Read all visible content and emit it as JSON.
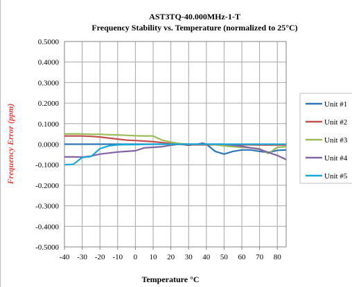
{
  "chart_data": {
    "type": "line",
    "title": "AST3TQ-40.000MHz-1-T",
    "subtitle": "Frequency Stability vs. Temperature  (normalized to 25°C)",
    "xlabel": "Temperature °C",
    "ylabel": "Frequency Error (ppm)",
    "xlim": [
      -40,
      85
    ],
    "ylim": [
      -0.5,
      0.5
    ],
    "x_ticks": [
      "-40",
      "-30",
      "-20",
      "-10",
      "0",
      "10",
      "20",
      "30",
      "40",
      "50",
      "60",
      "70",
      "80"
    ],
    "y_ticks": [
      "0.5000",
      "0.4000",
      "0.3000",
      "0.2000",
      "0.1000",
      "0.0000",
      "-0.1000",
      "-0.2000",
      "-0.3000",
      "-0.4000",
      "-0.5000"
    ],
    "grid": true,
    "legend_position": "right",
    "series": [
      {
        "name": "Unit #1",
        "color": "#2e75b6",
        "x": [
          -40,
          -35,
          -30,
          -25,
          -20,
          -15,
          -10,
          -5,
          0,
          5,
          10,
          15,
          20,
          25,
          30,
          35,
          38,
          40,
          45,
          50,
          55,
          60,
          65,
          70,
          75,
          80,
          85
        ],
        "y": [
          0.0,
          0.0,
          0.0,
          0.0,
          0.0,
          0.0,
          0.0,
          0.0,
          0.0,
          0.0,
          0.0,
          0.0,
          0.0,
          0.0,
          -0.005,
          0.0,
          0.005,
          0.0,
          -0.035,
          -0.048,
          -0.035,
          -0.028,
          -0.028,
          -0.035,
          -0.04,
          -0.03,
          -0.028
        ]
      },
      {
        "name": "Unit #2",
        "color": "#c0504d",
        "x": [
          -40,
          -35,
          -30,
          -25,
          -20,
          -15,
          -10,
          -5,
          0,
          5,
          10,
          15,
          20,
          25,
          30,
          35,
          40,
          45,
          50,
          55,
          60,
          65,
          70,
          75,
          80,
          85
        ],
        "y": [
          0.04,
          0.04,
          0.04,
          0.038,
          0.035,
          0.03,
          0.025,
          0.02,
          0.018,
          0.015,
          0.012,
          0.008,
          0.003,
          0.0,
          -0.003,
          -0.003,
          -0.003,
          -0.003,
          -0.003,
          -0.003,
          -0.003,
          -0.003,
          -0.004,
          -0.004,
          -0.004,
          -0.004
        ]
      },
      {
        "name": "Unit #3",
        "color": "#9bbb59",
        "x": [
          -40,
          -35,
          -30,
          -25,
          -20,
          -15,
          -10,
          -5,
          0,
          5,
          10,
          15,
          20,
          25,
          30,
          35,
          40,
          45,
          50,
          55,
          60,
          65,
          70,
          75,
          80,
          85
        ],
        "y": [
          0.05,
          0.05,
          0.05,
          0.048,
          0.048,
          0.046,
          0.045,
          0.043,
          0.041,
          0.04,
          0.04,
          0.02,
          0.01,
          0.003,
          0.0,
          0.0,
          0.0,
          -0.003,
          -0.008,
          -0.012,
          -0.015,
          -0.018,
          -0.022,
          -0.045,
          -0.015,
          -0.012
        ]
      },
      {
        "name": "Unit #4",
        "color": "#8064a2",
        "x": [
          -40,
          -35,
          -30,
          -25,
          -20,
          -15,
          -10,
          -5,
          0,
          5,
          10,
          15,
          20,
          25,
          30,
          35,
          40,
          45,
          50,
          55,
          60,
          65,
          70,
          75,
          80,
          85
        ],
        "y": [
          -0.062,
          -0.062,
          -0.063,
          -0.058,
          -0.048,
          -0.043,
          -0.038,
          -0.035,
          -0.032,
          -0.018,
          -0.015,
          -0.012,
          -0.005,
          0.0,
          0.0,
          0.0,
          0.0,
          0.0,
          0.0,
          -0.005,
          -0.01,
          -0.018,
          -0.025,
          -0.04,
          -0.055,
          -0.075
        ]
      },
      {
        "name": "Unit #5",
        "color": "#17a9d6",
        "x": [
          -40,
          -35,
          -30,
          -25,
          -20,
          -15,
          -10,
          -5,
          0,
          5,
          10,
          15,
          20,
          25,
          30,
          35,
          40,
          45,
          50,
          55,
          60,
          65,
          70,
          75,
          80,
          85
        ],
        "y": [
          -0.1,
          -0.098,
          -0.065,
          -0.06,
          -0.022,
          -0.008,
          -0.003,
          -0.002,
          -0.002,
          -0.001,
          0.0,
          0.0,
          0.0,
          0.0,
          0.0,
          0.0,
          0.0,
          0.0,
          0.0,
          0.0,
          0.0,
          0.0,
          0.0,
          0.0,
          0.0,
          0.0
        ]
      }
    ]
  }
}
